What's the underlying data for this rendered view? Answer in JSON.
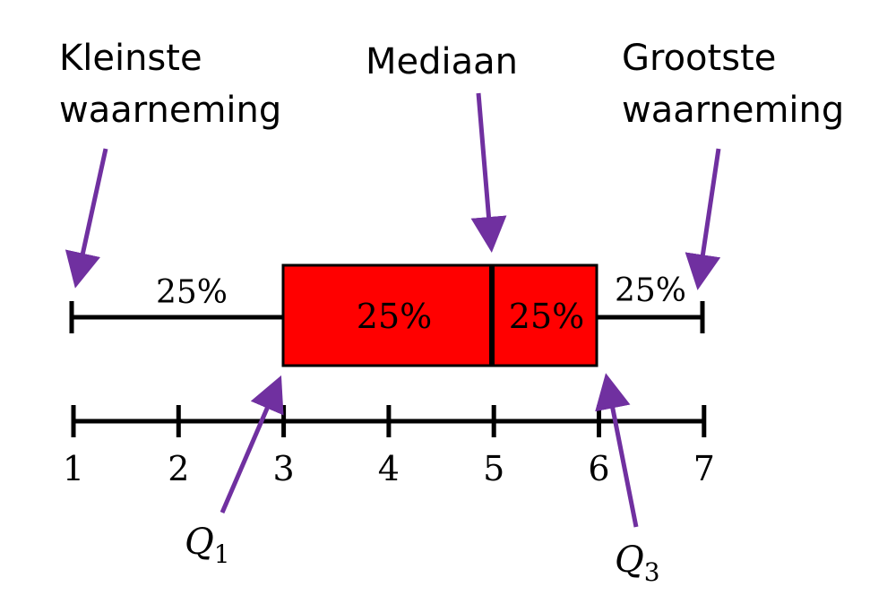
{
  "labels": {
    "min": [
      "Kleinste",
      "waarneming"
    ],
    "median": "Mediaan",
    "max": [
      "Grootste",
      "waarneming"
    ]
  },
  "box": {
    "min": 1,
    "q1": 3,
    "median": 5,
    "q3": 6,
    "max": 7
  },
  "percent_labels": {
    "left_whisker": "25%",
    "box_left": "25%",
    "box_right": "25%",
    "right_whisker": "25%"
  },
  "axis": {
    "ticks": [
      1,
      2,
      3,
      4,
      5,
      6,
      7
    ],
    "tick_labels": [
      "1",
      "2",
      "3",
      "4",
      "5",
      "6",
      "7"
    ]
  },
  "quartile_labels": {
    "q1": {
      "letter": "Q",
      "sub": "1"
    },
    "q3": {
      "letter": "Q",
      "sub": "3"
    }
  },
  "colors": {
    "box_fill": "#ff0000",
    "arrow": "#7030a0",
    "line": "#000000"
  }
}
